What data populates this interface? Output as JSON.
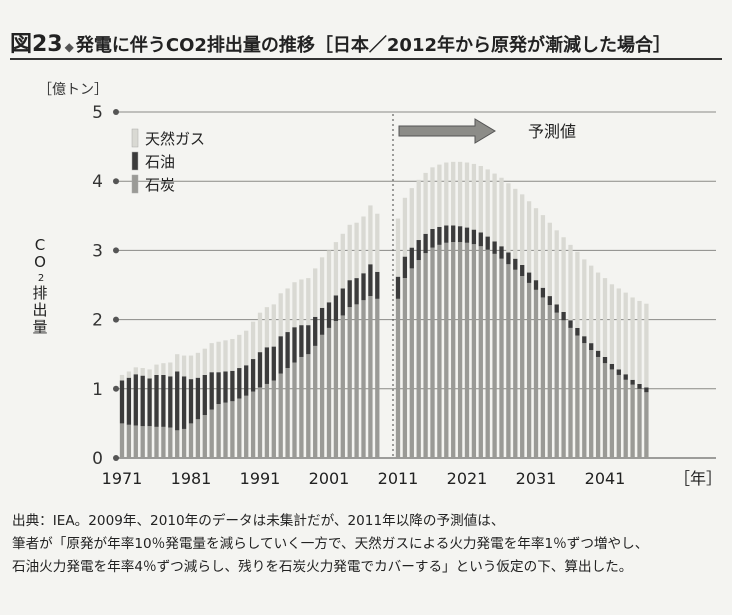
{
  "header": {
    "figure_label": "図23",
    "diamond": "◆",
    "title": "発電に伴うCO2排出量の推移［日本／2012年から原発が漸減した場合］"
  },
  "footnote": {
    "lines": [
      "出典：IEA。2009年、2010年のデータは未集計だが、2011年以降の予測値は、",
      "筆者が「原発が年率10％発電量を減らしていく一方で、天然ガスによる火力発電を年率1％ずつ増やし、",
      "石油火力発電を年率4％ずつ減らし、残りを石炭火力発電でカバーする」という仮定の下、算出した。"
    ]
  },
  "chart_data": {
    "type": "bar",
    "stacked": true,
    "unit_label": "［億トン］",
    "ylabel": "CO2排出量",
    "ylim": [
      0,
      5
    ],
    "yticks": [
      0,
      1,
      2,
      3,
      4,
      5
    ],
    "xticks": [
      "1971",
      "1981",
      "1991",
      "2001",
      "2011",
      "2021",
      "2031",
      "2041"
    ],
    "xunit": "［年］",
    "forecast_label": "予測値",
    "forecast_start": 2011,
    "legend": [
      {
        "name": "天然ガス",
        "color": "#d9d9d3"
      },
      {
        "name": "石油",
        "color": "#3b3b3b"
      },
      {
        "name": "石炭",
        "color": "#9a9a96"
      }
    ],
    "x": [
      1971,
      1972,
      1973,
      1974,
      1975,
      1976,
      1977,
      1978,
      1979,
      1980,
      1981,
      1982,
      1983,
      1984,
      1985,
      1986,
      1987,
      1988,
      1989,
      1990,
      1991,
      1992,
      1993,
      1994,
      1995,
      1996,
      1997,
      1998,
      1999,
      2000,
      2001,
      2002,
      2003,
      2004,
      2005,
      2006,
      2007,
      2008,
      2011,
      2012,
      2013,
      2014,
      2015,
      2016,
      2017,
      2018,
      2019,
      2020,
      2021,
      2022,
      2023,
      2024,
      2025,
      2026,
      2027,
      2028,
      2029,
      2030,
      2031,
      2032,
      2033,
      2034,
      2035,
      2036,
      2037,
      2038,
      2039,
      2040,
      2041,
      2042,
      2043,
      2044,
      2045,
      2046,
      2047
    ],
    "series": [
      {
        "name": "石炭",
        "values": [
          0.5,
          0.48,
          0.47,
          0.46,
          0.46,
          0.45,
          0.45,
          0.44,
          0.4,
          0.42,
          0.5,
          0.56,
          0.62,
          0.7,
          0.78,
          0.8,
          0.82,
          0.86,
          0.9,
          0.96,
          1.02,
          1.07,
          1.12,
          1.22,
          1.3,
          1.38,
          1.46,
          1.5,
          1.62,
          1.78,
          1.88,
          1.98,
          2.06,
          2.18,
          2.22,
          2.28,
          2.34,
          2.3,
          2.3,
          2.6,
          2.74,
          2.86,
          2.96,
          3.04,
          3.08,
          3.11,
          3.12,
          3.12,
          3.11,
          3.09,
          3.06,
          3.01,
          2.95,
          2.88,
          2.8,
          2.72,
          2.63,
          2.53,
          2.43,
          2.32,
          2.21,
          2.1,
          1.99,
          1.88,
          1.77,
          1.66,
          1.56,
          1.46,
          1.37,
          1.28,
          1.2,
          1.13,
          1.06,
          1.0,
          0.95
        ]
      },
      {
        "name": "石油",
        "values": [
          0.62,
          0.68,
          0.74,
          0.73,
          0.69,
          0.75,
          0.75,
          0.74,
          0.85,
          0.76,
          0.64,
          0.6,
          0.58,
          0.54,
          0.46,
          0.45,
          0.44,
          0.44,
          0.44,
          0.47,
          0.51,
          0.53,
          0.49,
          0.54,
          0.52,
          0.51,
          0.46,
          0.42,
          0.42,
          0.39,
          0.37,
          0.37,
          0.39,
          0.39,
          0.38,
          0.39,
          0.46,
          0.39,
          0.32,
          0.31,
          0.3,
          0.29,
          0.28,
          0.27,
          0.26,
          0.25,
          0.24,
          0.23,
          0.22,
          0.21,
          0.2,
          0.19,
          0.18,
          0.18,
          0.17,
          0.16,
          0.16,
          0.15,
          0.14,
          0.14,
          0.13,
          0.12,
          0.12,
          0.11,
          0.11,
          0.1,
          0.1,
          0.09,
          0.09,
          0.08,
          0.08,
          0.08,
          0.07,
          0.07,
          0.07
        ]
      },
      {
        "name": "天然ガス",
        "values": [
          0.08,
          0.09,
          0.1,
          0.11,
          0.13,
          0.15,
          0.17,
          0.2,
          0.25,
          0.3,
          0.34,
          0.36,
          0.38,
          0.42,
          0.44,
          0.45,
          0.46,
          0.48,
          0.5,
          0.54,
          0.57,
          0.58,
          0.61,
          0.62,
          0.63,
          0.65,
          0.66,
          0.68,
          0.7,
          0.73,
          0.75,
          0.77,
          0.79,
          0.8,
          0.8,
          0.82,
          0.85,
          0.84,
          0.84,
          0.85,
          0.86,
          0.87,
          0.88,
          0.89,
          0.9,
          0.91,
          0.92,
          0.93,
          0.94,
          0.95,
          0.96,
          0.97,
          0.98,
          0.99,
          1.0,
          1.01,
          1.02,
          1.03,
          1.04,
          1.05,
          1.06,
          1.07,
          1.08,
          1.09,
          1.1,
          1.11,
          1.12,
          1.13,
          1.14,
          1.15,
          1.17,
          1.18,
          1.19,
          1.2,
          1.21
        ]
      }
    ]
  }
}
